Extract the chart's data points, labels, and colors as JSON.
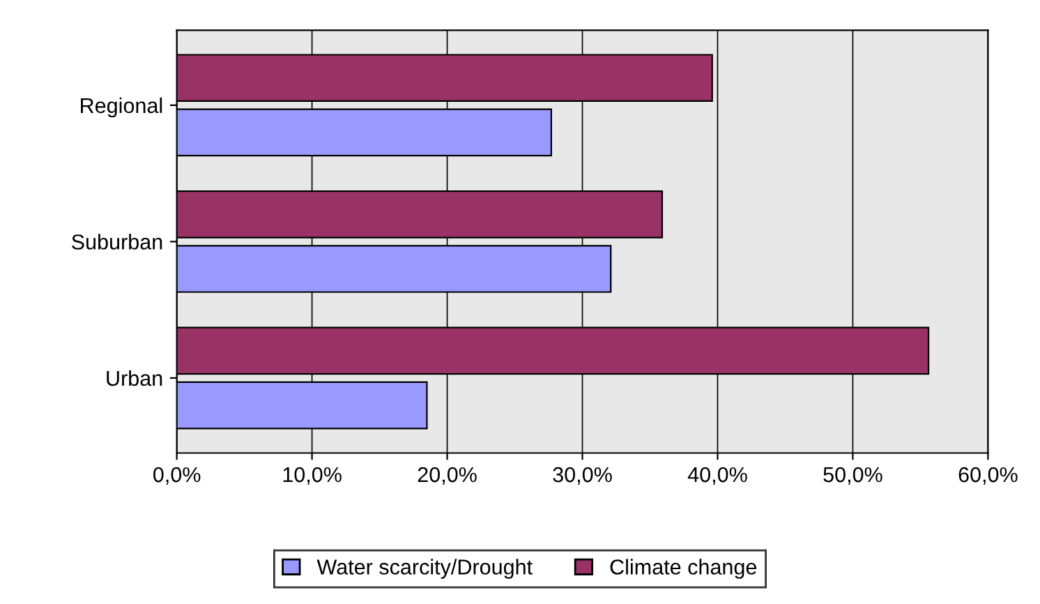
{
  "chart_data": {
    "type": "bar",
    "orientation": "horizontal",
    "categories": [
      "Regional",
      "Suburban",
      "Urban"
    ],
    "series": [
      {
        "name": "Water scarcity/Drought",
        "color": "#9999ff",
        "values": [
          27.7,
          32.1,
          18.5
        ]
      },
      {
        "name": "Climate change",
        "color": "#993366",
        "values": [
          39.6,
          35.9,
          55.6
        ]
      }
    ],
    "xlim": [
      0,
      60
    ],
    "xticks": [
      {
        "value": 0,
        "label": "0,0%"
      },
      {
        "value": 10,
        "label": "10,0%"
      },
      {
        "value": 20,
        "label": "20,0%"
      },
      {
        "value": 30,
        "label": "30,0%"
      },
      {
        "value": 40,
        "label": "40,0%"
      },
      {
        "value": 50,
        "label": "50,0%"
      },
      {
        "value": 60,
        "label": "60,0%"
      }
    ],
    "grid": "x",
    "legend": "bottom"
  }
}
